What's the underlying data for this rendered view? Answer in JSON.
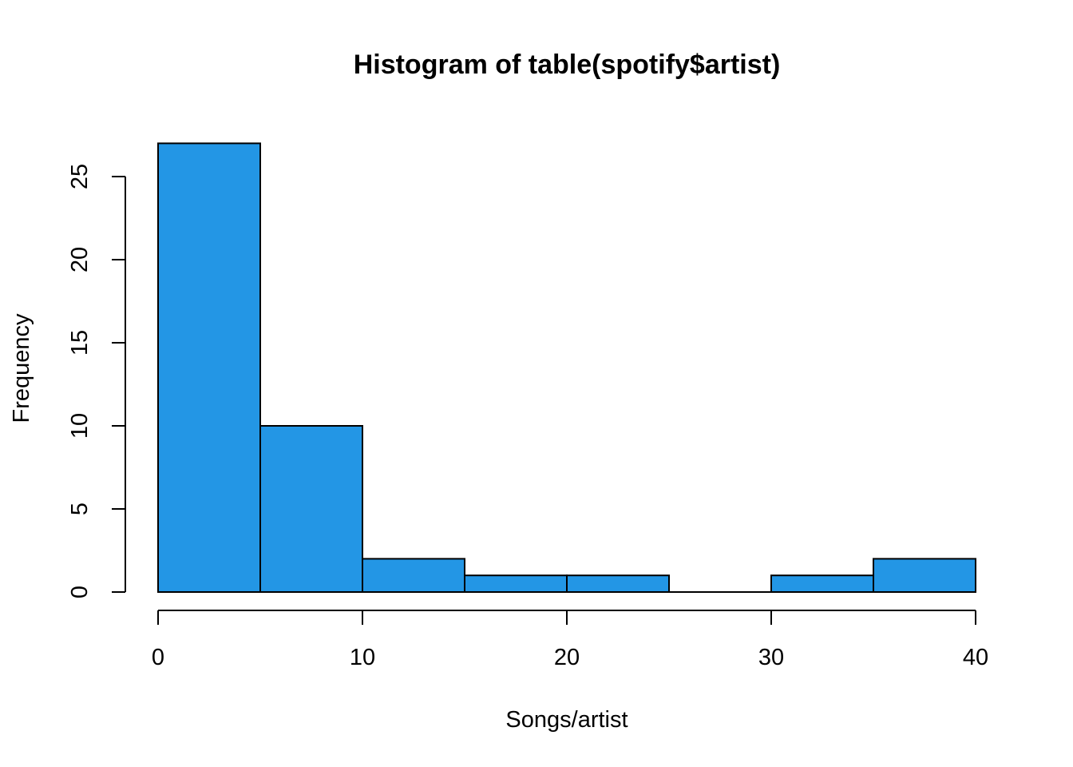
{
  "chart_data": {
    "type": "bar",
    "title": "Histogram of table(spotify$artist)",
    "xlabel": "Songs/artist",
    "ylabel": "Frequency",
    "bins": [
      {
        "from": 0,
        "to": 5,
        "count": 27
      },
      {
        "from": 5,
        "to": 10,
        "count": 10
      },
      {
        "from": 10,
        "to": 15,
        "count": 2
      },
      {
        "from": 15,
        "to": 20,
        "count": 1
      },
      {
        "from": 20,
        "to": 25,
        "count": 1
      },
      {
        "from": 25,
        "to": 30,
        "count": 0
      },
      {
        "from": 30,
        "to": 35,
        "count": 1
      },
      {
        "from": 35,
        "to": 40,
        "count": 2
      }
    ],
    "xlim": [
      0,
      40
    ],
    "ylim": [
      0,
      27
    ],
    "x_ticks": [
      "0",
      "10",
      "20",
      "30",
      "40"
    ],
    "y_ticks": [
      "0",
      "5",
      "10",
      "15",
      "20",
      "25"
    ],
    "bar_color": "#2396E5",
    "grid": false,
    "legend": "none"
  }
}
